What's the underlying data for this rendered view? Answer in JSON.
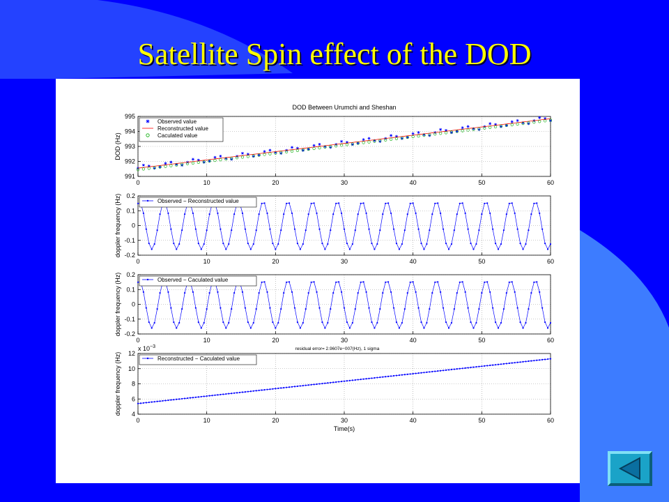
{
  "slide": {
    "title": "Satellite Spin effect of the DOD",
    "colors": {
      "background": "#0000ff",
      "title": "#ffff00",
      "accent_shape": "#3d7cff"
    }
  },
  "nav": {
    "back_icon": "triangle-left-icon"
  },
  "chart_data": [
    {
      "type": "scatter",
      "title": "DOD Between Urumchi and Sheshan",
      "xlabel": "",
      "ylabel": "DOD (Hz)",
      "xlim": [
        0,
        60
      ],
      "ylim": [
        991,
        995
      ],
      "xticks": [
        0,
        10,
        20,
        30,
        40,
        50,
        60
      ],
      "yticks": [
        991,
        992,
        993,
        994,
        995
      ],
      "grid": true,
      "legend_position": "top-left",
      "series": [
        {
          "name": "Observed value",
          "marker": "star",
          "color": "#0000ff",
          "trend": [
            991.55,
            994.85
          ],
          "ripple_amplitude": 0.16,
          "period": 3.6
        },
        {
          "name": "Reconstructed value",
          "marker": "line",
          "color": "#ff0000",
          "trend": [
            991.55,
            994.85
          ]
        },
        {
          "name": "Caculated value",
          "marker": "circle",
          "color": "#00aa00",
          "trend": [
            991.45,
            994.75
          ]
        }
      ]
    },
    {
      "type": "line",
      "xlabel": "",
      "ylabel": "doppler frequency (Hz)",
      "xlim": [
        0,
        60
      ],
      "ylim": [
        -0.2,
        0.2
      ],
      "xticks": [
        0,
        10,
        20,
        30,
        40,
        50,
        60
      ],
      "yticks": [
        -0.2,
        -0.1,
        0,
        0.1,
        0.2
      ],
      "grid": true,
      "legend_position": "top-left",
      "series": [
        {
          "name": "Observed − Reconstructed value",
          "marker": "dot",
          "color": "#0000ff",
          "amplitude": 0.16,
          "period": 3.6
        }
      ]
    },
    {
      "type": "line",
      "xlabel": "",
      "ylabel": "doppler frequency (Hz)",
      "xlim": [
        0,
        60
      ],
      "ylim": [
        -0.2,
        0.2
      ],
      "xticks": [
        0,
        10,
        20,
        30,
        40,
        50,
        60
      ],
      "yticks": [
        -0.2,
        -0.1,
        0,
        0.1,
        0.2
      ],
      "grid": true,
      "legend_position": "top-left",
      "series": [
        {
          "name": "Observed − Caculated value",
          "marker": "dot",
          "color": "#0000ff",
          "amplitude": 0.16,
          "period": 3.6
        }
      ]
    },
    {
      "type": "line",
      "xlabel": "Time(s)",
      "ylabel": "doppler frequency (Hz)",
      "xlim": [
        0,
        60
      ],
      "ylim": [
        4,
        12
      ],
      "xticks": [
        0,
        10,
        20,
        30,
        40,
        50,
        60
      ],
      "yticks": [
        4,
        6,
        8,
        10,
        12
      ],
      "scale_label": "x 10",
      "scale_exponent": "−3",
      "annotation": "residual error= 2.9607e−007(Hz), 1 sigma",
      "grid": true,
      "legend_position": "top-left",
      "series": [
        {
          "name": "Reconstructed − Caculated value",
          "marker": "dot",
          "color": "#0000ff",
          "start": 5.4,
          "end": 11.3
        }
      ]
    }
  ]
}
